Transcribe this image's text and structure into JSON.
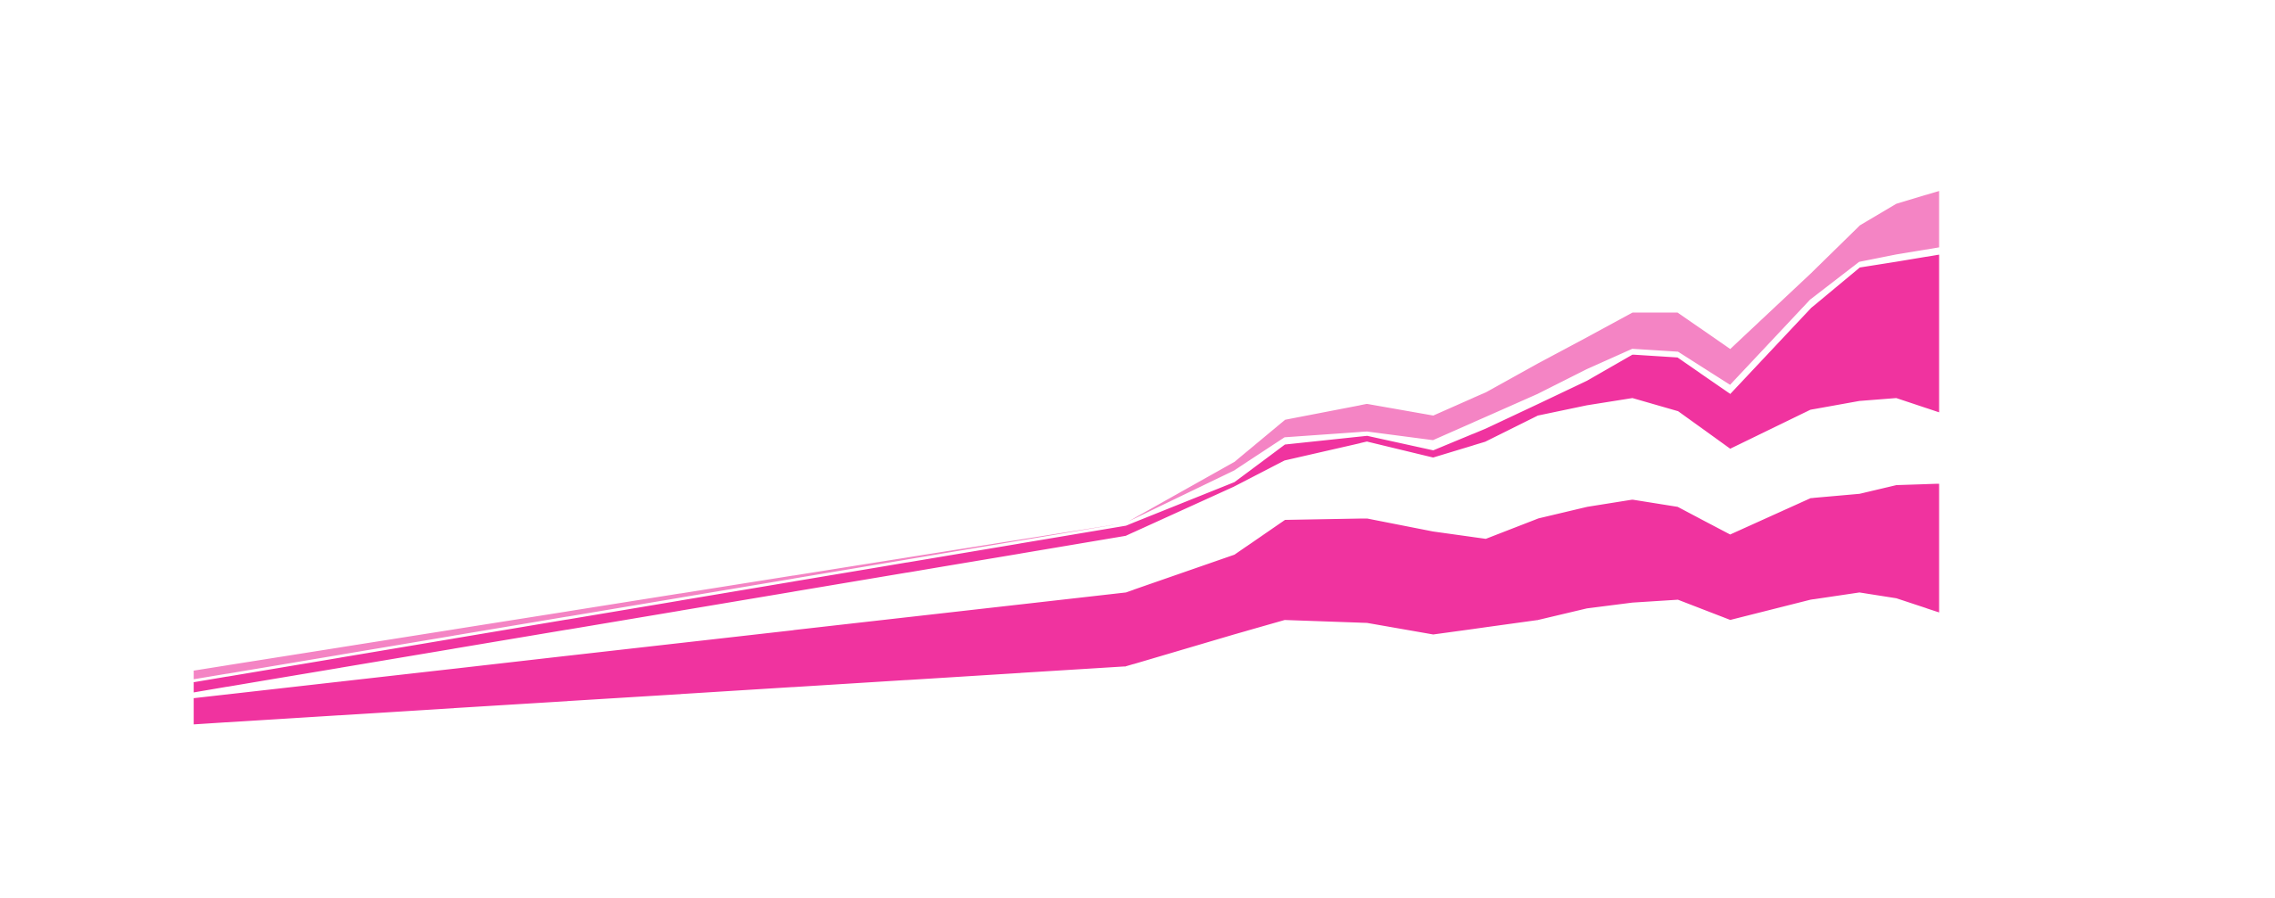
{
  "chart_data": {
    "type": "area",
    "x": [
      0,
      53.4,
      59.6,
      62.5,
      67.2,
      71.0,
      74.0,
      77.0,
      79.8,
      82.4,
      85.0,
      88.0,
      92.6,
      95.4,
      97.5,
      100
    ],
    "xlim": [
      0,
      100
    ],
    "ylim": [
      0,
      100
    ],
    "series": [
      {
        "color": "#f0339f",
        "low": [
          12,
          20,
          24.4,
          26.4,
          26,
          24.4,
          25.4,
          26.4,
          28,
          28.8,
          29.2,
          26.4,
          29.2,
          30.2,
          29.4,
          27.4
        ],
        "high": [
          15.8,
          30.4,
          35.6,
          40.4,
          40.6,
          38.8,
          37.8,
          40.6,
          42.2,
          43.2,
          42.2,
          38.4,
          43.4,
          44,
          45.2,
          45.4
        ]
      },
      {
        "color": "#f0339f",
        "low": [
          16.4,
          38,
          44.8,
          48.4,
          51,
          48.8,
          51,
          54.6,
          56,
          57,
          55.2,
          50,
          55.4,
          56.6,
          57,
          55
        ],
        "high": [
          18,
          39.6,
          45.6,
          50.8,
          52,
          50,
          53,
          56.4,
          59.6,
          63.2,
          62.8,
          57.8,
          69.6,
          75.2,
          76,
          77
        ]
      },
      {
        "color": "#f484c4",
        "low": [
          18.2,
          39.8,
          47,
          51.6,
          52.4,
          51.2,
          54.4,
          57.6,
          61,
          63.8,
          63.4,
          58.8,
          70.6,
          75.8,
          76.8,
          77.8
        ],
        "high": [
          19.6,
          40,
          48.4,
          54.2,
          56.4,
          54.8,
          58,
          62,
          65.6,
          69,
          69,
          64,
          74.4,
          81,
          84,
          85.8
        ]
      }
    ]
  }
}
